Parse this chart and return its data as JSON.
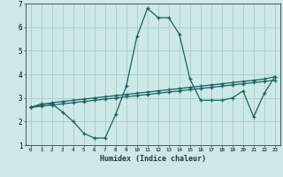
{
  "title": "",
  "xlabel": "Humidex (Indice chaleur)",
  "xlim": [
    -0.5,
    23.5
  ],
  "ylim": [
    1,
    7
  ],
  "xticks": [
    0,
    1,
    2,
    3,
    4,
    5,
    6,
    7,
    8,
    9,
    10,
    11,
    12,
    13,
    14,
    15,
    16,
    17,
    18,
    19,
    20,
    21,
    22,
    23
  ],
  "yticks": [
    1,
    2,
    3,
    4,
    5,
    6,
    7
  ],
  "background_color": "#cce8e8",
  "grid_color": "#aacccc",
  "line_color": "#1a6060",
  "line1_x": [
    0,
    1,
    2,
    3,
    4,
    5,
    6,
    7,
    8,
    9,
    10,
    11,
    12,
    13,
    14,
    15,
    16,
    17,
    18,
    19,
    20,
    21,
    22,
    23
  ],
  "line1_y": [
    2.6,
    2.75,
    2.75,
    2.4,
    2.0,
    1.5,
    1.3,
    1.3,
    2.3,
    3.5,
    5.6,
    6.8,
    6.4,
    6.4,
    5.7,
    3.8,
    2.9,
    2.9,
    2.9,
    3.0,
    3.3,
    2.2,
    3.2,
    3.9
  ],
  "line2_x": [
    0,
    1,
    2,
    3,
    4,
    5,
    6,
    7,
    8,
    9,
    10,
    11,
    12,
    13,
    14,
    15,
    16,
    17,
    18,
    19,
    20,
    21,
    22,
    23
  ],
  "line2_y": [
    2.6,
    2.7,
    2.8,
    2.85,
    2.9,
    2.95,
    3.0,
    3.05,
    3.1,
    3.15,
    3.2,
    3.25,
    3.3,
    3.35,
    3.4,
    3.45,
    3.5,
    3.55,
    3.6,
    3.65,
    3.7,
    3.75,
    3.8,
    3.9
  ],
  "line3_x": [
    0,
    1,
    2,
    3,
    4,
    5,
    6,
    7,
    8,
    9,
    10,
    11,
    12,
    13,
    14,
    15,
    16,
    17,
    18,
    19,
    20,
    21,
    22,
    23
  ],
  "line3_y": [
    2.6,
    2.65,
    2.7,
    2.75,
    2.8,
    2.85,
    2.9,
    2.95,
    3.0,
    3.05,
    3.1,
    3.15,
    3.2,
    3.25,
    3.3,
    3.35,
    3.4,
    3.45,
    3.5,
    3.55,
    3.6,
    3.65,
    3.7,
    3.75
  ]
}
